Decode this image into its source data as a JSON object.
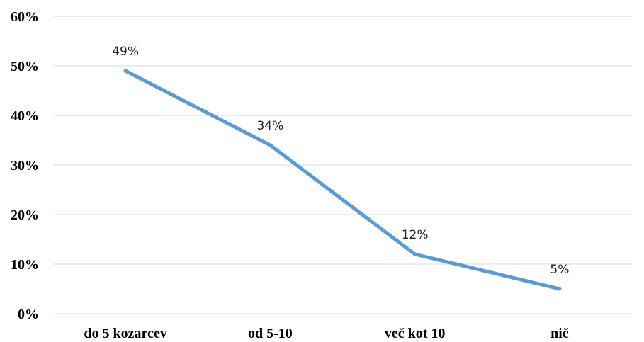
{
  "chart_data": {
    "type": "line",
    "title": "",
    "xlabel": "",
    "ylabel": "",
    "categories": [
      "do 5 kozarcev",
      "od 5-10",
      "več kot 10",
      "nič"
    ],
    "series": [
      {
        "values": [
          49,
          34,
          12,
          5
        ],
        "labels": [
          "49%",
          "34%",
          "12%",
          "5%"
        ],
        "color": "#5b9bd5"
      }
    ],
    "ylim": [
      0,
      60
    ],
    "yticks": [
      0,
      10,
      20,
      30,
      40,
      50,
      60
    ],
    "ytick_labels": [
      "0%",
      "10%",
      "20%",
      "30%",
      "40%",
      "50%",
      "60%"
    ],
    "grid": true,
    "legend": "none",
    "grid_color": "#d9d9d9"
  }
}
